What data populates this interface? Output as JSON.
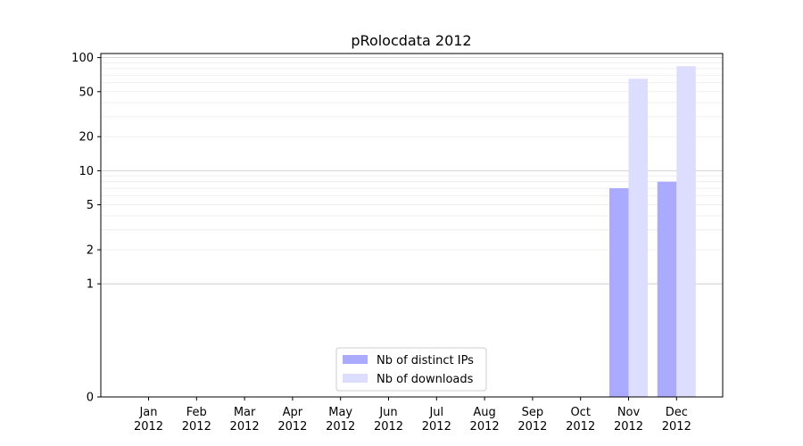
{
  "chart_data": {
    "type": "bar",
    "title": "pRolocdata 2012",
    "xlabel": "",
    "ylabel": "",
    "yscale": "symlog",
    "ylim": [
      0,
      100
    ],
    "y_ticks": [
      0,
      1,
      2,
      5,
      10,
      20,
      50,
      100
    ],
    "categories": [
      "Jan\n2012",
      "Feb\n2012",
      "Mar\n2012",
      "Apr\n2012",
      "May\n2012",
      "Jun\n2012",
      "Jul\n2012",
      "Aug\n2012",
      "Sep\n2012",
      "Oct\n2012",
      "Nov\n2012",
      "Dec\n2012"
    ],
    "series": [
      {
        "name": "Nb of distinct IPs",
        "color": "#aaaaff",
        "values": [
          0,
          0,
          0,
          0,
          0,
          0,
          0,
          0,
          0,
          0,
          7,
          8
        ]
      },
      {
        "name": "Nb of downloads",
        "color": "#ddddff",
        "values": [
          0,
          0,
          0,
          0,
          0,
          0,
          0,
          0,
          0,
          0,
          65,
          84
        ]
      }
    ],
    "grid": true,
    "legend_position": "lower-center"
  }
}
